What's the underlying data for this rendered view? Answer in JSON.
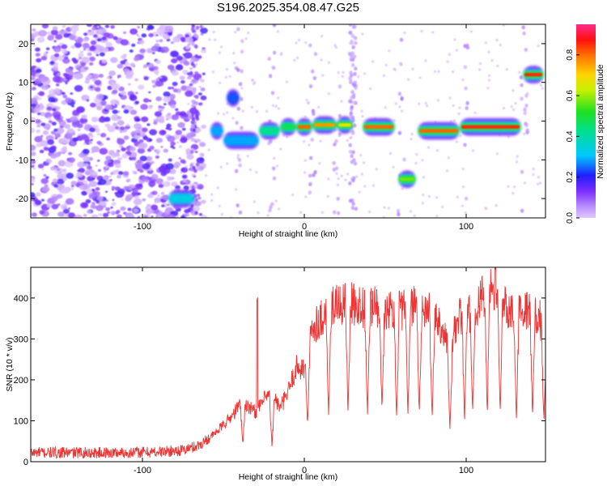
{
  "title": "S196.2025.354.08.47.G25",
  "chart_data": [
    {
      "type": "heatmap",
      "id": "spectrogram",
      "title": "S196.2025.354.08.47.G25",
      "xlabel": "Height of straight line (km)",
      "ylabel": "Frequency (Hz)",
      "xlim": [
        -169,
        149
      ],
      "ylim": [
        -25,
        25
      ],
      "xticks": [
        -100,
        0,
        100
      ],
      "yticks": [
        -20,
        -10,
        0,
        10,
        20
      ],
      "colorbar": {
        "label": "Normalized spectral amplitude",
        "range": [
          0,
          0.95
        ],
        "ticks": [
          0.0,
          0.2,
          0.4,
          0.6,
          0.8
        ],
        "colormap": "rainbow (magenta-blue-cyan-green-yellow-red-pink)"
      },
      "noise_region_x": [
        -169,
        -62
      ],
      "dominant_track": [
        {
          "x_start": -84,
          "x_end": -68,
          "freq": -20,
          "amplitude": 0.35
        },
        {
          "x_start": -58,
          "x_end": -50,
          "freq": -2.5,
          "amplitude": 0.3
        },
        {
          "x_start": -48,
          "x_end": -40,
          "freq": 6,
          "amplitude": 0.25
        },
        {
          "x_start": -50,
          "x_end": -28,
          "freq": -5,
          "amplitude": 0.3
        },
        {
          "x_start": -28,
          "x_end": -15,
          "freq": -2.5,
          "amplitude": 0.45
        },
        {
          "x_start": -15,
          "x_end": -5,
          "freq": -1.5,
          "amplitude": 0.5
        },
        {
          "x_start": -5,
          "x_end": 5,
          "freq": -1.5,
          "amplitude": 0.85
        },
        {
          "x_start": 5,
          "x_end": 20,
          "freq": -1,
          "amplitude": 0.8
        },
        {
          "x_start": 20,
          "x_end": 30,
          "freq": -1,
          "amplitude": 0.7
        },
        {
          "x_start": 36,
          "x_end": 56,
          "freq": -1.5,
          "amplitude": 0.85
        },
        {
          "x_start": 58,
          "x_end": 69,
          "freq": -15,
          "amplitude": 0.6
        },
        {
          "x_start": 70,
          "x_end": 96,
          "freq": -2.5,
          "amplitude": 0.85
        },
        {
          "x_start": 96,
          "x_end": 134,
          "freq": -1.5,
          "amplitude": 0.9
        },
        {
          "x_start": 135,
          "x_end": 148,
          "freq": 12,
          "amplitude": 0.9
        }
      ]
    },
    {
      "type": "line",
      "id": "snr",
      "xlabel": "Height of straight line (km)",
      "ylabel": "SNR (10 * v/v)",
      "xlim": [
        -169,
        149
      ],
      "ylim": [
        0,
        475
      ],
      "xticks": [
        -100,
        0,
        100
      ],
      "yticks": [
        0,
        100,
        200,
        300,
        400
      ],
      "series": [
        {
          "name": "SNR",
          "color": "#ee3333",
          "x": [
            -169,
            -150,
            -130,
            -110,
            -90,
            -75,
            -65,
            -55,
            -45,
            -38,
            -30,
            -25,
            -20,
            -15,
            -10,
            -5,
            0,
            5,
            10,
            15,
            20,
            25,
            30,
            35,
            40,
            45,
            50,
            55,
            60,
            65,
            70,
            75,
            80,
            85,
            90,
            95,
            100,
            105,
            110,
            115,
            120,
            125,
            130,
            135,
            140,
            145,
            149
          ],
          "values": [
            22,
            22,
            22,
            22,
            24,
            28,
            40,
            70,
            110,
            150,
            120,
            150,
            170,
            130,
            170,
            230,
            230,
            330,
            350,
            370,
            380,
            385,
            385,
            380,
            375,
            380,
            375,
            375,
            370,
            380,
            385,
            370,
            360,
            330,
            270,
            350,
            360,
            375,
            400,
            420,
            395,
            380,
            370,
            370,
            370,
            355,
            300
          ],
          "dips": [
            {
              "x": -38,
              "min": 30
            },
            {
              "x": -20,
              "min": 25
            },
            {
              "x": 2,
              "min": 80
            },
            {
              "x": 15,
              "min": 100
            },
            {
              "x": 27,
              "min": 110
            },
            {
              "x": 39,
              "min": 100
            },
            {
              "x": 48,
              "min": 110
            },
            {
              "x": 57,
              "min": 95
            },
            {
              "x": 64,
              "min": 100
            },
            {
              "x": 71,
              "min": 100
            },
            {
              "x": 79,
              "min": 90
            },
            {
              "x": 90,
              "min": 60
            },
            {
              "x": 99,
              "min": 85
            },
            {
              "x": 104,
              "min": 110
            },
            {
              "x": 113,
              "min": 100
            },
            {
              "x": 121,
              "min": 110
            },
            {
              "x": 131,
              "min": 90
            },
            {
              "x": 141,
              "min": 100
            },
            {
              "x": 148,
              "min": 90
            }
          ],
          "spikes": [
            {
              "x": -29,
              "max": 400
            },
            {
              "x": 118,
              "max": 475
            }
          ]
        }
      ]
    }
  ]
}
